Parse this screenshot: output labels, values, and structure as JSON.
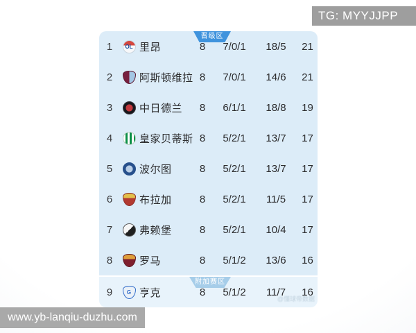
{
  "page": {
    "tg_label": "TG: MYYJJPP",
    "site_watermark": "www.yb-lanqiu-duzhu.com",
    "photo_watermark": "@懂球帝数据"
  },
  "colors": {
    "promotion_badge": "#3f93dd",
    "playoff_badge": "#a6cde9",
    "row_background": "#dcecf8",
    "playoff_row_background": "#e8f3fb",
    "banner_grey": "#9e9e9e",
    "site_box_grey": "#a9a9a9"
  },
  "table": {
    "promotion_badge": "晋级区",
    "playoff_badge": "附加赛区",
    "columns": [
      "rank",
      "logo",
      "team",
      "played",
      "win/draw/loss",
      "goals for/against",
      "points"
    ],
    "rows": [
      {
        "rank": "1",
        "team": "里昂",
        "played": "8",
        "record": "7/0/1",
        "goals": "18/5",
        "points": "21",
        "logo": {
          "icon_name": "lyon-crest-icon",
          "shape": "circle",
          "style": "band",
          "colors": [
            "#f7f8fa",
            "#d5473f"
          ],
          "letter": "OL",
          "letter_color": "#1a4fa0",
          "border": "#c9d4de"
        }
      },
      {
        "rank": "2",
        "team": "阿斯顿维拉",
        "played": "8",
        "record": "7/0/1",
        "goals": "14/6",
        "points": "21",
        "logo": {
          "icon_name": "aston-villa-crest-icon",
          "shape": "shield",
          "style": "splitv",
          "colors": [
            "#77203f",
            "#a3c6e4"
          ],
          "letter": "",
          "letter_color": "#e8c24a",
          "border": "#5e1931"
        }
      },
      {
        "rank": "3",
        "team": "中日德兰",
        "played": "8",
        "record": "6/1/1",
        "goals": "18/8",
        "points": "19",
        "logo": {
          "icon_name": "midtjylland-crest-icon",
          "shape": "circle",
          "style": "radial",
          "colors": [
            "#17171c",
            "#c2383d"
          ],
          "letter": "",
          "letter_color": "#ffffff",
          "border": "#3a3a40"
        }
      },
      {
        "rank": "4",
        "team": "皇家贝蒂斯",
        "played": "8",
        "record": "5/2/1",
        "goals": "13/7",
        "points": "17",
        "logo": {
          "icon_name": "real-betis-crest-icon",
          "shape": "circle",
          "style": "stripes",
          "colors": [
            "#ffffff",
            "#0b8f47"
          ],
          "letter": "",
          "letter_color": "#e8c24a",
          "border": "#b8cfc0"
        }
      },
      {
        "rank": "5",
        "team": "波尔图",
        "played": "8",
        "record": "5/2/1",
        "goals": "13/7",
        "points": "17",
        "logo": {
          "icon_name": "porto-crest-icon",
          "shape": "circle",
          "style": "radial",
          "colors": [
            "#27508c",
            "#b9cee6"
          ],
          "letter": "",
          "letter_color": "#ffffff",
          "border": "#27508c"
        }
      },
      {
        "rank": "6",
        "team": "布拉加",
        "played": "8",
        "record": "5/2/1",
        "goals": "11/5",
        "points": "17",
        "logo": {
          "icon_name": "braga-crest-icon",
          "shape": "shield",
          "style": "band",
          "colors": [
            "#b23a31",
            "#e3c04a"
          ],
          "letter": "",
          "letter_color": "#ffffff",
          "border": "#8d2c26"
        }
      },
      {
        "rank": "7",
        "team": "弗赖堡",
        "played": "8",
        "record": "5/2/1",
        "goals": "10/4",
        "points": "17",
        "logo": {
          "icon_name": "freiburg-crest-icon",
          "shape": "circle",
          "style": "diag",
          "colors": [
            "#f6f6f6",
            "#1f1f1f"
          ],
          "letter": "",
          "letter_color": "#c2383d",
          "border": "#555555"
        }
      },
      {
        "rank": "8",
        "team": "罗马",
        "played": "8",
        "record": "5/1/2",
        "goals": "13/6",
        "points": "16",
        "logo": {
          "icon_name": "roma-crest-icon",
          "shape": "shield",
          "style": "band",
          "colors": [
            "#7e1f2e",
            "#df9f3b"
          ],
          "letter": "",
          "letter_color": "#e8c24a",
          "border": "#5f1722"
        }
      },
      {
        "rank": "9",
        "team": "亨克",
        "played": "8",
        "record": "5/1/2",
        "goals": "11/7",
        "points": "16",
        "logo": {
          "icon_name": "genk-crest-icon",
          "shape": "shield",
          "style": "solid",
          "colors": [
            "#eaf1f8"
          ],
          "letter": "G",
          "letter_color": "#2f6bc9",
          "border": "#2f6bc9"
        }
      }
    ]
  }
}
